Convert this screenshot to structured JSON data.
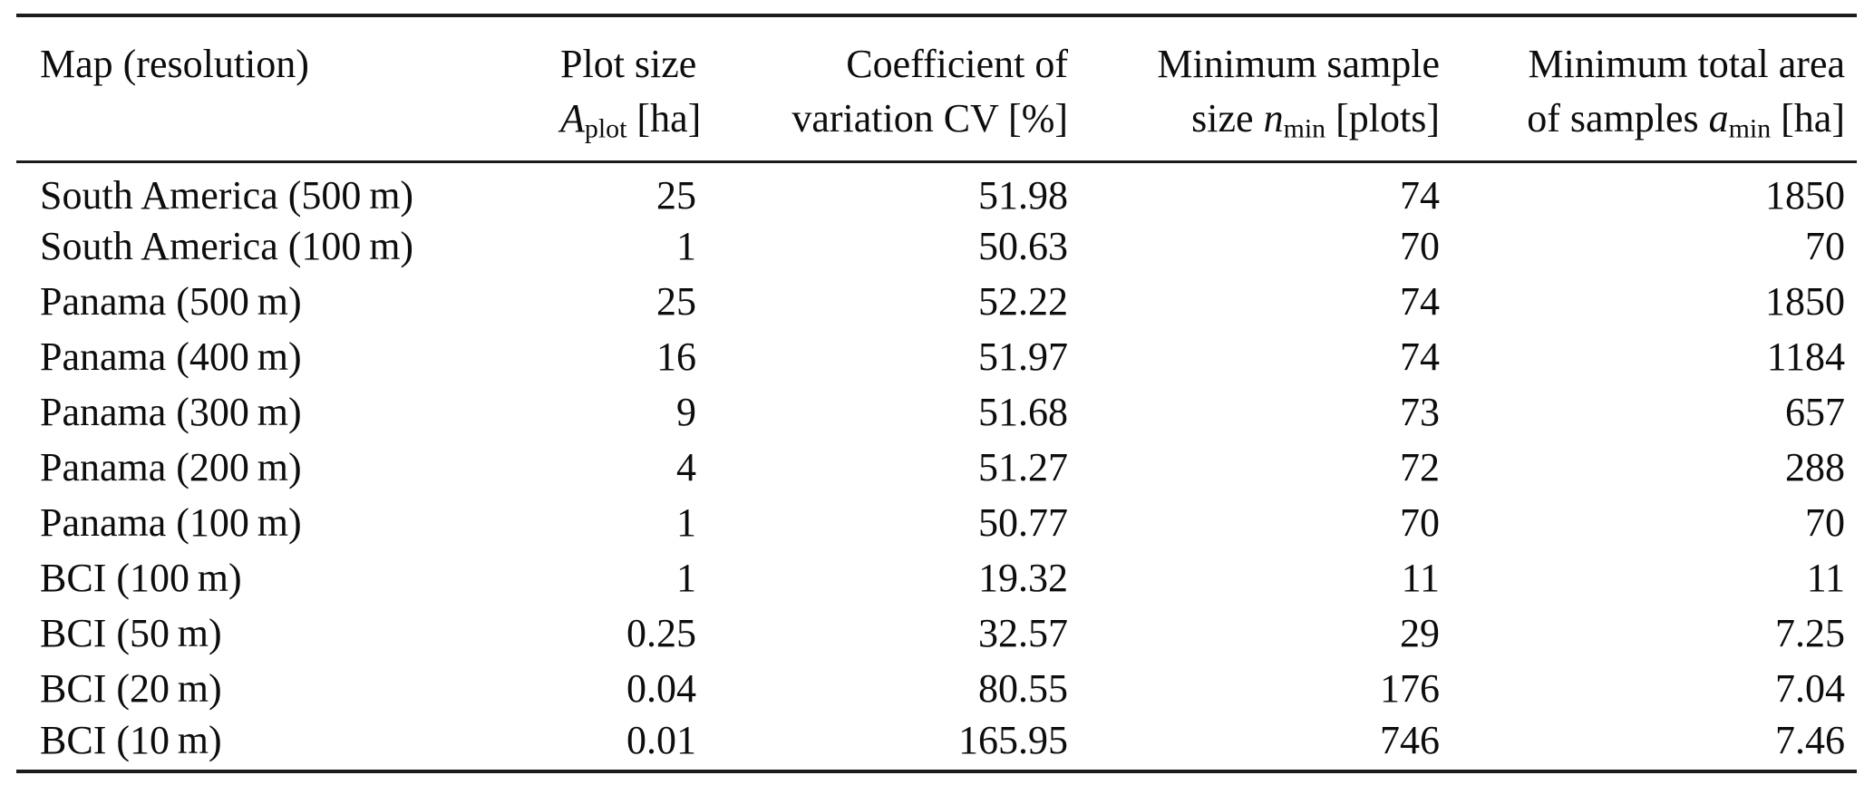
{
  "page": {
    "background_color": "#ffffff",
    "text_color": "#0d0d0d",
    "rule_color": "#1c1c1c"
  },
  "table": {
    "headers": {
      "col1_line1": "Map (resolution)",
      "col2_line1": "Plot size",
      "col2_line2_var": "A",
      "col2_line2_sub": "plot",
      "col2_line2_post": " [ha]",
      "col3_line1": "Coefficient of",
      "col3_line2": "variation CV [%]",
      "col4_line1": "Minimum sample",
      "col4_line2_pre": "size ",
      "col4_line2_var": "n",
      "col4_line2_sub": "min",
      "col4_line2_post": " [plots]",
      "col5_line1": "Minimum total area",
      "col5_line2_pre": "of samples ",
      "col5_line2_var": "a",
      "col5_line2_sub": "min",
      "col5_line2_post": " [ha]"
    },
    "rows": [
      {
        "map": "South America (500 m)",
        "plot_size": "25",
        "cv": "51.98",
        "n_min": "74",
        "a_min": "1850"
      },
      {
        "map": "South America (100 m)",
        "plot_size": "1",
        "cv": "50.63",
        "n_min": "70",
        "a_min": "70"
      },
      {
        "map": "Panama (500 m)",
        "plot_size": "25",
        "cv": "52.22",
        "n_min": "74",
        "a_min": "1850"
      },
      {
        "map": "Panama (400 m)",
        "plot_size": "16",
        "cv": "51.97",
        "n_min": "74",
        "a_min": "1184"
      },
      {
        "map": "Panama (300 m)",
        "plot_size": "9",
        "cv": "51.68",
        "n_min": "73",
        "a_min": "657"
      },
      {
        "map": "Panama (200 m)",
        "plot_size": "4",
        "cv": "51.27",
        "n_min": "72",
        "a_min": "288"
      },
      {
        "map": "Panama (100 m)",
        "plot_size": "1",
        "cv": "50.77",
        "n_min": "70",
        "a_min": "70"
      },
      {
        "map": "BCI (100 m)",
        "plot_size": "1",
        "cv": "19.32",
        "n_min": "11",
        "a_min": "11"
      },
      {
        "map": "BCI (50 m)",
        "plot_size": "0.25",
        "cv": "32.57",
        "n_min": "29",
        "a_min": "7.25"
      },
      {
        "map": "BCI (20 m)",
        "plot_size": "0.04",
        "cv": "80.55",
        "n_min": "176",
        "a_min": "7.04"
      },
      {
        "map": "BCI (10 m)",
        "plot_size": "0.01",
        "cv": "165.95",
        "n_min": "746",
        "a_min": "7.46"
      }
    ]
  },
  "chart_data": {
    "type": "table",
    "columns": [
      "Map (resolution)",
      "Plot size A_plot [ha]",
      "Coefficient of variation CV [%]",
      "Minimum sample size n_min [plots]",
      "Minimum total area of samples a_min [ha]"
    ],
    "rows": [
      [
        "South America (500 m)",
        25,
        51.98,
        74,
        1850
      ],
      [
        "South America (100 m)",
        1,
        50.63,
        70,
        70
      ],
      [
        "Panama (500 m)",
        25,
        52.22,
        74,
        1850
      ],
      [
        "Panama (400 m)",
        16,
        51.97,
        74,
        1184
      ],
      [
        "Panama (300 m)",
        9,
        51.68,
        73,
        657
      ],
      [
        "Panama (200 m)",
        4,
        51.27,
        72,
        288
      ],
      [
        "Panama (100 m)",
        1,
        50.77,
        70,
        70
      ],
      [
        "BCI (100 m)",
        1,
        19.32,
        11,
        11
      ],
      [
        "BCI (50 m)",
        0.25,
        32.57,
        29,
        7.25
      ],
      [
        "BCI (20 m)",
        0.04,
        80.55,
        176,
        7.04
      ],
      [
        "BCI (10 m)",
        0.01,
        165.95,
        746,
        7.46
      ]
    ]
  }
}
